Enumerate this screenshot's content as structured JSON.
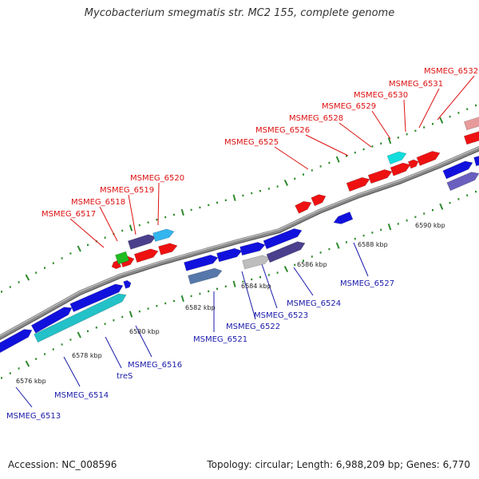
{
  "title": "Mycobacterium smegmatis str. MC2 155, complete genome",
  "footer": {
    "accession": "Accession: NC_008596",
    "summary": "Topology: circular; Length: 6,988,209 bp; Genes: 6,770"
  },
  "colors": {
    "backbone": "#8a8a8a",
    "ruler": "#2e8b2e",
    "label_upper": "#dd1111",
    "label_lower": "#1a1aaa"
  },
  "ruler": {
    "ticks": [
      {
        "label": "6576 kbp"
      },
      {
        "label": "6578 kbp"
      },
      {
        "label": "6580 kbp"
      },
      {
        "label": "6582 kbp"
      },
      {
        "label": "6584 kbp"
      },
      {
        "label": "6586 kbp"
      },
      {
        "label": "6588 kbp"
      },
      {
        "label": "6590 kbp"
      }
    ]
  },
  "genes": [
    {
      "name": "MSMEG_6513",
      "side": "lower"
    },
    {
      "name": "MSMEG_6514",
      "side": "lower"
    },
    {
      "name": "treS",
      "side": "lower"
    },
    {
      "name": "MSMEG_6516",
      "side": "lower"
    },
    {
      "name": "MSMEG_6517",
      "side": "upper"
    },
    {
      "name": "MSMEG_6518",
      "side": "upper"
    },
    {
      "name": "MSMEG_6519",
      "side": "upper"
    },
    {
      "name": "MSMEG_6520",
      "side": "upper"
    },
    {
      "name": "MSMEG_6521",
      "side": "lower"
    },
    {
      "name": "MSMEG_6522",
      "side": "lower"
    },
    {
      "name": "MSMEG_6523",
      "side": "lower"
    },
    {
      "name": "MSMEG_6524",
      "side": "lower"
    },
    {
      "name": "MSMEG_6525",
      "side": "upper"
    },
    {
      "name": "MSMEG_6526",
      "side": "upper"
    },
    {
      "name": "MSMEG_6527",
      "side": "lower"
    },
    {
      "name": "MSMEG_6528",
      "side": "upper"
    },
    {
      "name": "MSMEG_6529",
      "side": "upper"
    },
    {
      "name": "MSMEG_6530",
      "side": "upper"
    },
    {
      "name": "MSMEG_6531",
      "side": "upper"
    },
    {
      "name": "MSMEG_6532",
      "side": "upper"
    }
  ]
}
